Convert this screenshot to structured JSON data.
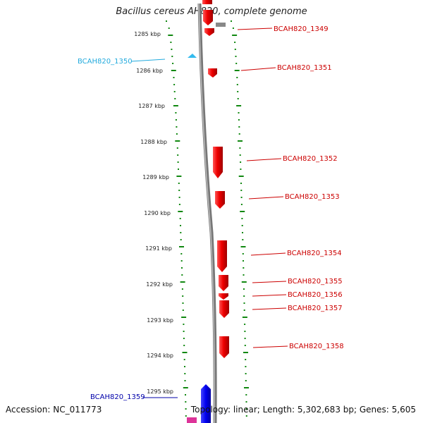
{
  "title": "Bacillus cereus AH820, complete genome",
  "accession_text": "Accession: NC_011773",
  "topology_text": "Topology: linear; Length: 5,302,683 bp; Genes: 5,605",
  "kbp_labels": [
    "1285 kbp",
    "1286 kbp",
    "1287 kbp",
    "1288 kbp",
    "1289 kbp",
    "1290 kbp",
    "1291 kbp",
    "1292 kbp",
    "1293 kbp",
    "1294 kbp",
    "1295 kbp"
  ],
  "colors": {
    "forward_gene": "#ee0000",
    "label_red": "#cc0000",
    "label_cyan": "#22aadd",
    "label_blue": "#0000aa",
    "scale_green": "#118811",
    "backbone": "#888888"
  },
  "genes": [
    {
      "name": "BCAH820_1349",
      "color": "red",
      "label_side": "right"
    },
    {
      "name": "BCAH820_1350",
      "color": "cyan",
      "label_side": "left"
    },
    {
      "name": "BCAH820_1351",
      "color": "red",
      "label_side": "right"
    },
    {
      "name": "BCAH820_1352",
      "color": "red",
      "label_side": "right"
    },
    {
      "name": "BCAH820_1353",
      "color": "red",
      "label_side": "right"
    },
    {
      "name": "BCAH820_1354",
      "color": "red",
      "label_side": "right"
    },
    {
      "name": "BCAH820_1355",
      "color": "red",
      "label_side": "right"
    },
    {
      "name": "BCAH820_1356",
      "color": "red",
      "label_side": "right"
    },
    {
      "name": "BCAH820_1357",
      "color": "red",
      "label_side": "right"
    },
    {
      "name": "BCAH820_1358",
      "color": "red",
      "label_side": "right"
    },
    {
      "name": "BCAH820_1359",
      "color": "blue",
      "label_side": "left"
    }
  ]
}
